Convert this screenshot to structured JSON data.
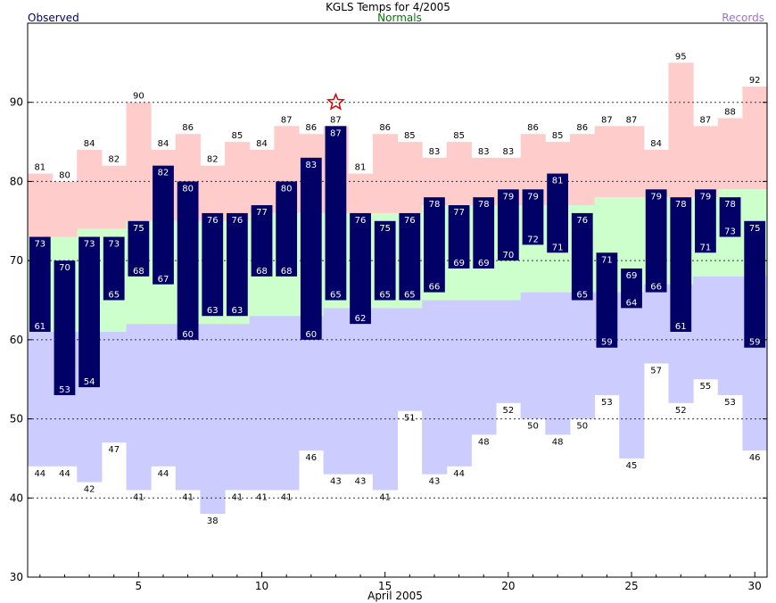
{
  "chart_data": {
    "type": "bar",
    "title": "KGLS Temps for 4/2005",
    "xlabel": "April 2005",
    "ylabel": "",
    "legend": [
      {
        "name": "Observed",
        "color": "#000066",
        "placement": "top-left"
      },
      {
        "name": "Normals",
        "color": "#007700",
        "placement": "top-center"
      },
      {
        "name": "Records",
        "color": "#a070d0",
        "placement": "top-right"
      }
    ],
    "ylim": [
      30,
      100
    ],
    "yticks": [
      30,
      40,
      50,
      60,
      70,
      80,
      90
    ],
    "xlim": [
      0.5,
      30.5
    ],
    "xticks": [
      5,
      10,
      15,
      20,
      25,
      30
    ],
    "grid_y_dashed": [
      40,
      50,
      60,
      70,
      80,
      90
    ],
    "days": [
      1,
      2,
      3,
      4,
      5,
      6,
      7,
      8,
      9,
      10,
      11,
      12,
      13,
      14,
      15,
      16,
      17,
      18,
      19,
      20,
      21,
      22,
      23,
      24,
      25,
      26,
      27,
      28,
      29,
      30
    ],
    "observed": {
      "high": [
        73,
        70,
        73,
        73,
        75,
        82,
        80,
        76,
        76,
        77,
        80,
        83,
        87,
        76,
        75,
        76,
        78,
        77,
        78,
        79,
        79,
        81,
        76,
        71,
        69,
        79,
        78,
        79,
        78,
        75
      ],
      "low": [
        61,
        53,
        54,
        65,
        68,
        67,
        60,
        63,
        63,
        68,
        68,
        60,
        65,
        62,
        65,
        65,
        66,
        69,
        69,
        70,
        72,
        71,
        65,
        59,
        64,
        66,
        61,
        71,
        73,
        59
      ]
    },
    "normals": {
      "high": [
        73,
        73,
        74,
        74,
        75,
        75,
        75,
        75,
        75,
        76,
        76,
        76,
        76,
        76,
        76,
        76,
        77,
        77,
        77,
        77,
        77,
        77,
        77,
        78,
        78,
        78,
        78,
        78,
        79,
        79
      ],
      "low": [
        61,
        61,
        61,
        61,
        62,
        62,
        62,
        62,
        62,
        63,
        63,
        63,
        64,
        64,
        64,
        64,
        65,
        65,
        65,
        65,
        66,
        66,
        66,
        66,
        66,
        67,
        67,
        68,
        68,
        68
      ]
    },
    "records": {
      "high": [
        81,
        80,
        84,
        82,
        90,
        84,
        86,
        82,
        85,
        84,
        87,
        86,
        87,
        81,
        86,
        85,
        83,
        85,
        83,
        83,
        86,
        85,
        86,
        87,
        87,
        84,
        95,
        87,
        88,
        92
      ],
      "low": [
        44,
        44,
        42,
        47,
        41,
        44,
        41,
        38,
        41,
        41,
        41,
        46,
        43,
        43,
        41,
        51,
        43,
        44,
        48,
        52,
        50,
        48,
        50,
        53,
        45,
        57,
        52,
        55,
        53,
        46
      ]
    },
    "record_set_marker": {
      "day": 13,
      "value": 90,
      "symbol": "star",
      "color": "#dd0000"
    }
  }
}
